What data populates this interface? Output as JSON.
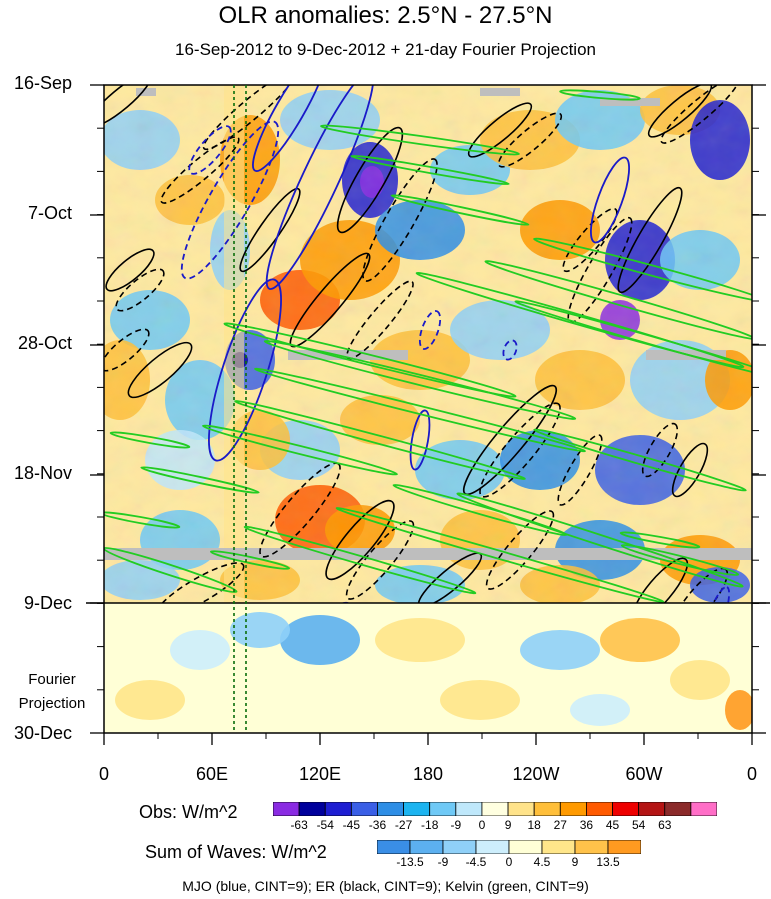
{
  "title": "OLR anomalies: 2.5°N - 27.5°N",
  "subtitle": "16-Sep-2012 to 9-Dec-2012 + 21-day Fourier Projection",
  "y_labels": [
    "16-Sep",
    "7-Oct",
    "28-Oct",
    "18-Nov",
    "9-Dec",
    "30-Dec"
  ],
  "fourier_label": [
    "Fourier",
    "Projection"
  ],
  "x_labels": [
    "0",
    "60E",
    "120E",
    "180",
    "120W",
    "60W",
    "0"
  ],
  "obs_colorbar": {
    "title": "Obs: W/m^2",
    "ticks": [
      "-63",
      "-54",
      "-45",
      "-36",
      "-27",
      "-18",
      "-9",
      "0",
      "9",
      "18",
      "27",
      "36",
      "45",
      "54",
      "63"
    ],
    "colors": [
      "#8a2be2",
      "#00009c",
      "#1e1ed2",
      "#3a5fe6",
      "#2e8ee6",
      "#1cb4f0",
      "#6fc9f6",
      "#bfe8fb",
      "#ffffe0",
      "#ffe38a",
      "#ffbf3a",
      "#ff9a00",
      "#ff5a00",
      "#ee0000",
      "#b41414",
      "#8b2a2a",
      "#ff6ec7"
    ]
  },
  "waves_colorbar": {
    "title": "Sum of Waves: W/m^2",
    "ticks": [
      "-13.5",
      "-9",
      "-4.5",
      "0",
      "4.5",
      "9",
      "13.5"
    ],
    "colors": [
      "#3a8ee6",
      "#5cb0f0",
      "#8fd0f8",
      "#cdeefc",
      "#ffffd6",
      "#ffe68a",
      "#ffc24a",
      "#ff9a20"
    ]
  },
  "legend_note": "MJO (blue, CINT=9); ER (black, CINT=9); Kelvin (green, CINT=9)",
  "colors": {
    "mjo": "#1a1ac8",
    "er": "#000000",
    "kelvin": "#22cc22",
    "grid_line": "#000000",
    "missing": "#bebebe"
  },
  "chart_data": {
    "type": "heatmap",
    "title": "OLR anomalies: 2.5°N - 27.5°N",
    "subtitle": "16-Sep-2012 to 9-Dec-2012 + 21-day Fourier Projection",
    "x_axis": {
      "ticks": [
        "0",
        "60E",
        "120E",
        "180",
        "120W",
        "60W",
        "0"
      ],
      "range_deg_east": [
        0,
        360
      ]
    },
    "y_axis": {
      "ticks": [
        "16-Sep",
        "7-Oct",
        "28-Oct",
        "18-Nov",
        "9-Dec",
        "30-Dec"
      ],
      "range": [
        "16-Sep-2012",
        "30-Dec-2012"
      ],
      "projection_start": "9-Dec-2012"
    },
    "contour_series": [
      {
        "name": "MJO",
        "color": "blue",
        "cint": 9
      },
      {
        "name": "ER",
        "color": "black",
        "cint": 9
      },
      {
        "name": "Kelvin",
        "color": "green",
        "cint": 9
      }
    ],
    "obs_levels": [
      -63,
      -54,
      -45,
      -36,
      -27,
      -18,
      -9,
      0,
      9,
      18,
      27,
      36,
      45,
      54,
      63
    ],
    "waves_levels": [
      -13.5,
      -9,
      -4.5,
      0,
      4.5,
      9,
      13.5
    ]
  }
}
